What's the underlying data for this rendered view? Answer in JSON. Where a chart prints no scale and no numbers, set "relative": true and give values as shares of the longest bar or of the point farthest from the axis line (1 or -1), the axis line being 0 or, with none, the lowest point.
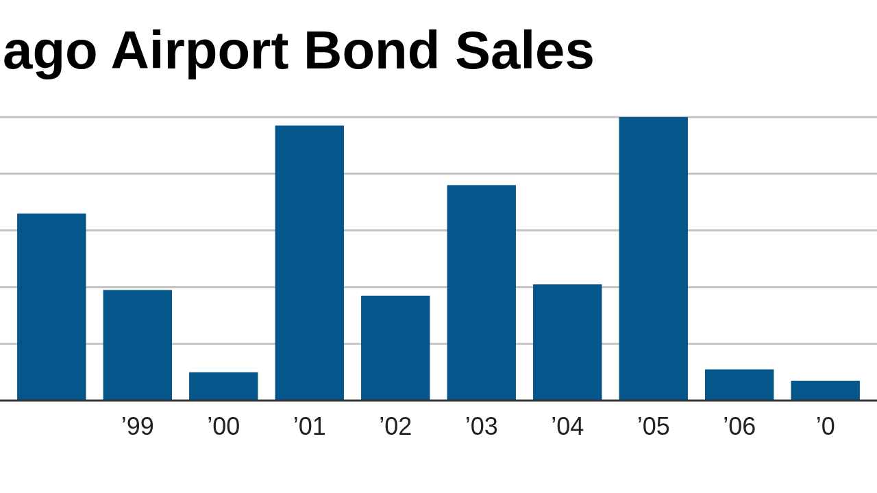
{
  "chart_data": {
    "type": "bar",
    "title": "ago Airport Bond Sales",
    "categories": [
      null,
      "’99",
      "’00",
      "’01",
      "’02",
      "’03",
      "’04",
      "’05",
      "’06",
      "’0"
    ],
    "values": [
      0.66,
      0.39,
      0.1,
      0.97,
      0.37,
      0.76,
      0.41,
      1,
      0.11,
      0.07
    ],
    "color": "#05578b",
    "relative": true,
    "grid": "y"
  }
}
